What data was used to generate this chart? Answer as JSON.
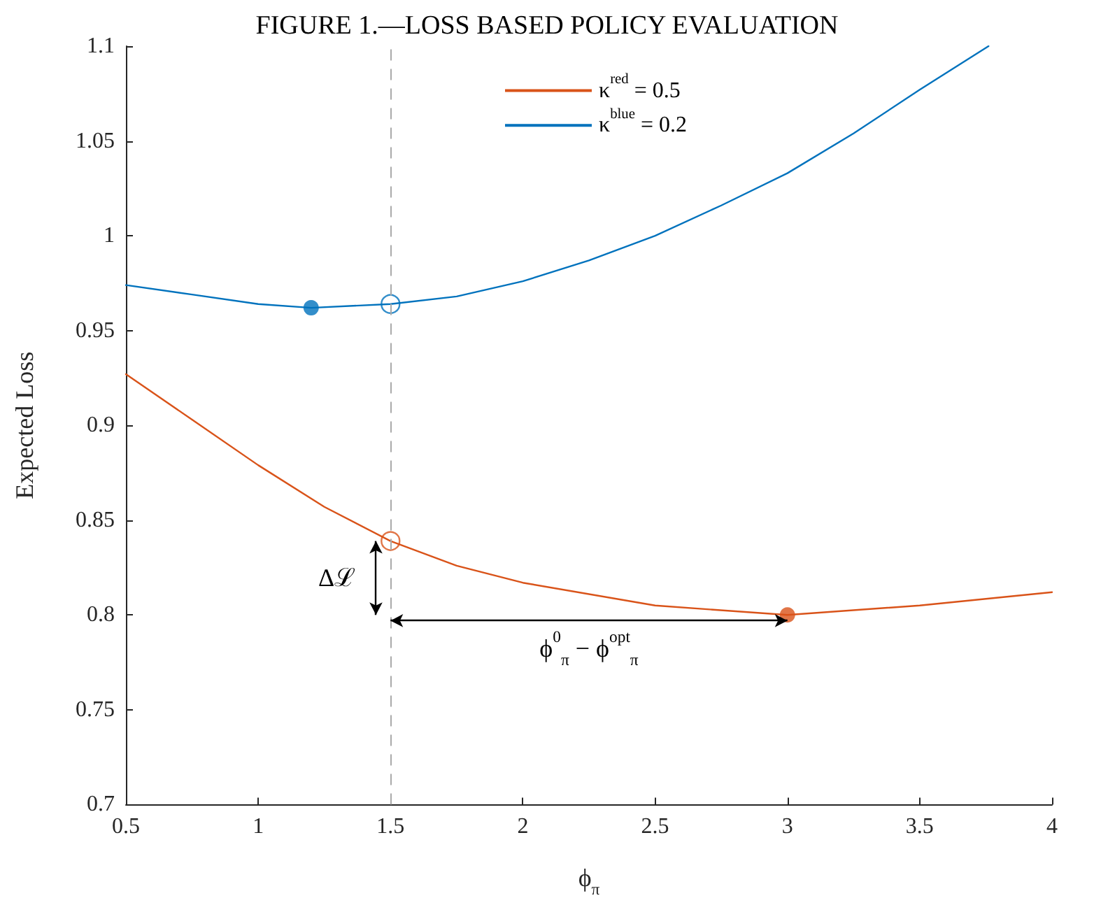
{
  "chart_data": {
    "type": "line",
    "title": "FIGURE 1.—LOSS BASED POLICY EVALUATION",
    "xlabel": "ϕ$_{π}$",
    "ylabel": "Expected Loss",
    "xlim": [
      0.5,
      4
    ],
    "xticks": [
      0.5,
      1,
      1.5,
      2,
      2.5,
      3,
      3.5,
      4
    ],
    "ylim": [
      0.7,
      1.1
    ],
    "yticks": [
      0.7,
      0.75,
      0.8,
      0.85,
      0.9,
      0.95,
      1,
      1.05,
      1.1
    ],
    "grid": false,
    "legend": "top",
    "marker": "none",
    "line_style": "solid",
    "series": [
      {
        "name": "κ$^{red}$ = 0.5",
        "color": "#d95319",
        "x": [
          0.5,
          0.75,
          1,
          1.25,
          1.5,
          1.75,
          2,
          2.5,
          3,
          3.5,
          4
        ],
        "values": [
          0.927,
          0.903,
          0.879,
          0.857,
          0.839,
          0.826,
          0.817,
          0.805,
          0.8,
          0.805,
          0.812
        ]
      },
      {
        "name": "κ$^{blue}$ = 0.2",
        "color": "#0072bd",
        "x": [
          0.5,
          0.75,
          1,
          1.2,
          1.5,
          1.75,
          2,
          2.25,
          2.5,
          2.75,
          3,
          3.25,
          3.5,
          3.76
        ],
        "values": [
          0.974,
          0.969,
          0.964,
          0.962,
          0.964,
          0.968,
          0.976,
          0.987,
          1.0,
          1.016,
          1.033,
          1.054,
          1.077,
          1.1
        ]
      },
      {
        "type": "scatter",
        "marker": "circle",
        "color": "#d95319",
        "x": [
          1.5,
          3
        ],
        "values": [
          0.839,
          0.8
        ]
      },
      {
        "type": "scatter",
        "marker": "circle",
        "color": "#0072bd",
        "x": [
          1.2,
          1.5
        ],
        "values": [
          0.962,
          0.964
        ]
      }
    ],
    "ref_lines": [
      {
        "axis": "x",
        "value": 1.5,
        "color": "#aaaaaa",
        "line_style": "dashed"
      }
    ],
    "annotations": [
      "Δℒ",
      "ϕ$^{0}$$_{π}$ − ϕ$^{opt}$$_{π}$"
    ]
  }
}
